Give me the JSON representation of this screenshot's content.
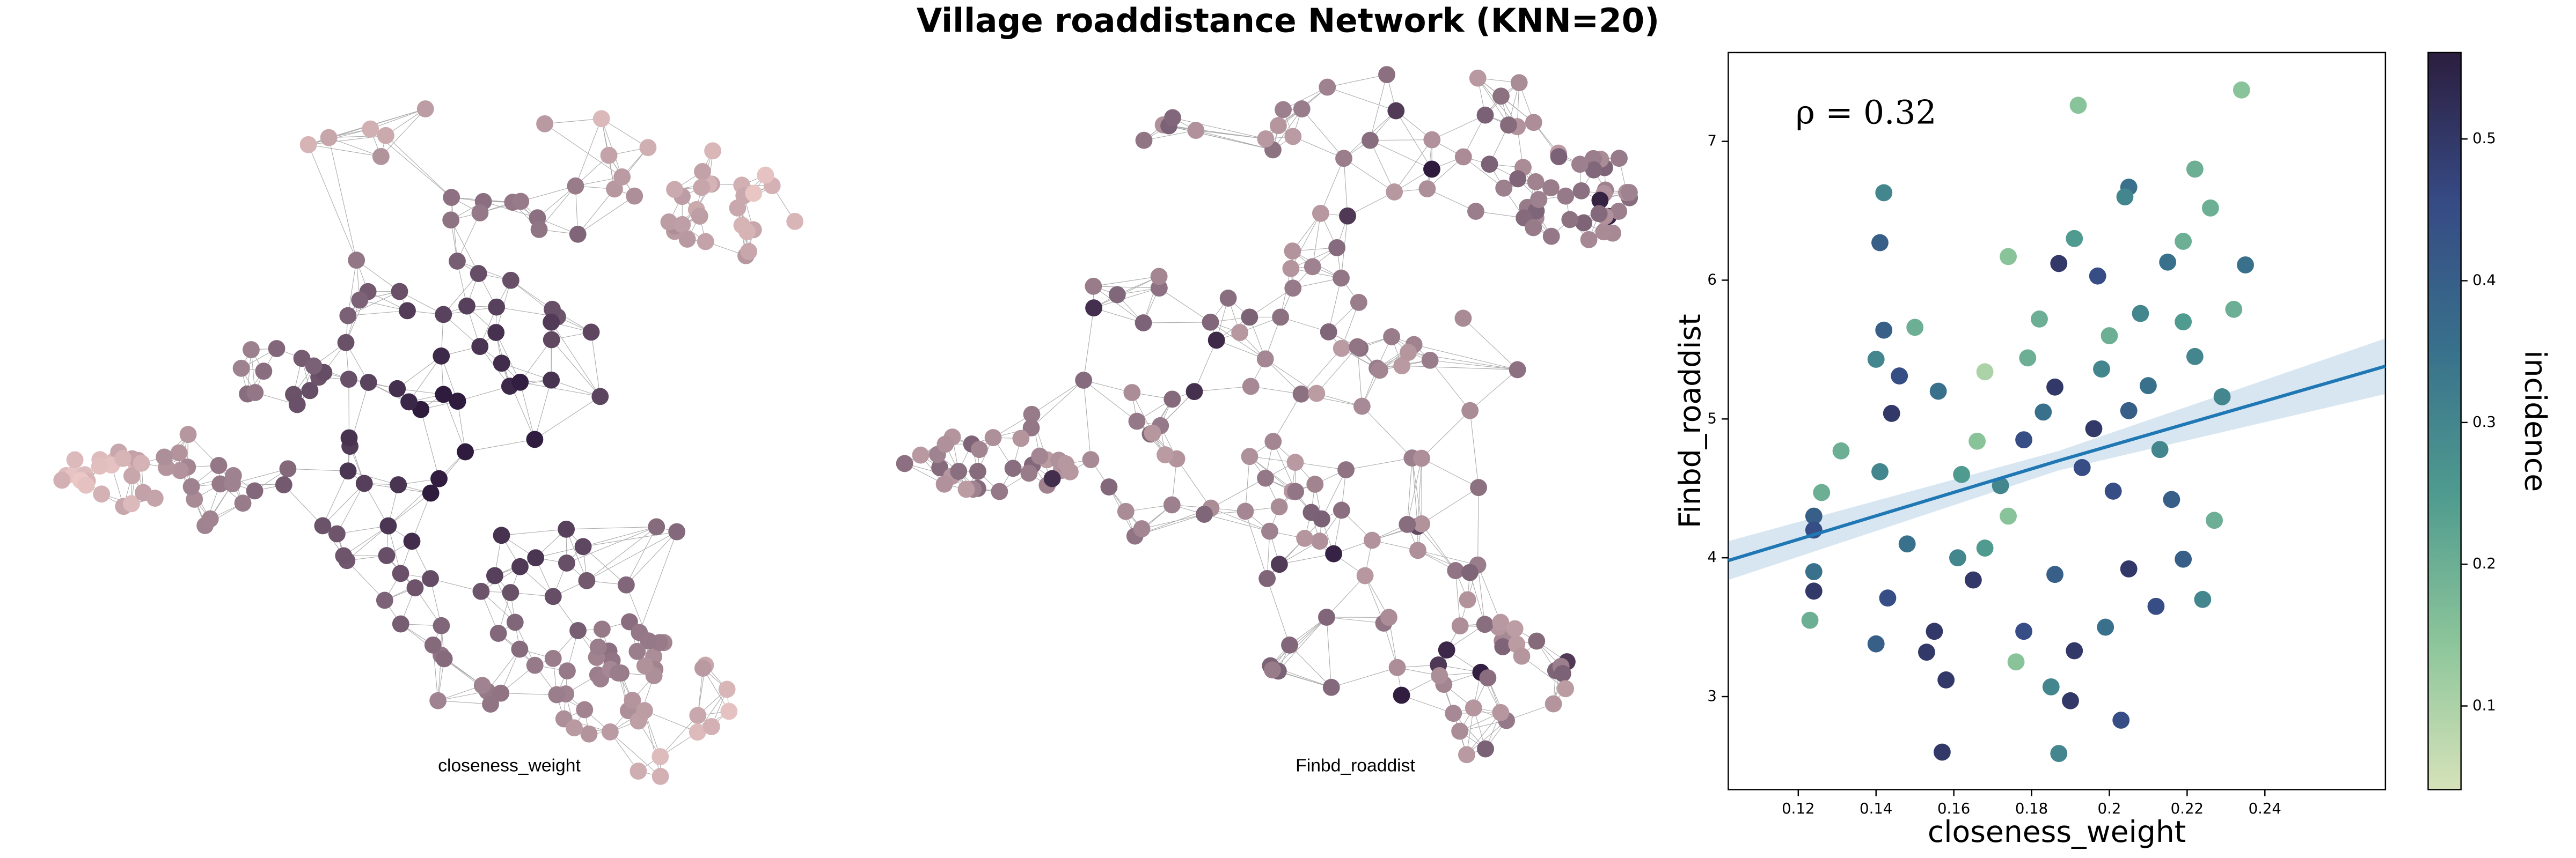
{
  "title": "Village roaddistance Network (KNN=20)",
  "chart_data": [
    {
      "type": "network",
      "caption": "closeness_weight",
      "shading": "center-dark"
    },
    {
      "type": "network",
      "caption": "Finbd_roaddist",
      "shading": "mostly-light"
    },
    {
      "type": "scatter",
      "annotation": "ρ = 0.32",
      "x_label": "closeness_weight",
      "y_label": "Finbd_roaddist",
      "colorbar_label": "incidence",
      "xlim": [
        0.102,
        0.271
      ],
      "ylim": [
        2.33,
        7.64
      ],
      "clim": [
        0.041,
        0.561
      ],
      "xticks": [
        0.12,
        0.14,
        0.16,
        0.18,
        0.2,
        0.22,
        0.24
      ],
      "yticks": [
        3,
        4,
        5,
        6,
        7
      ],
      "cticks": [
        0.1,
        0.2,
        0.3,
        0.4,
        0.5
      ],
      "colormap": [
        "#d6e2b9",
        "#8cc59a",
        "#4f9b8f",
        "#38708c",
        "#364a84",
        "#2c1e3f"
      ],
      "fit": {
        "color": "#1f77b4",
        "x": [
          0.102,
          0.187,
          0.271
        ],
        "y": [
          3.98,
          4.7,
          5.38
        ],
        "lower": [
          3.84,
          4.63,
          5.18
        ],
        "upper": [
          4.12,
          4.77,
          5.58
        ]
      },
      "points": {
        "x": [
          0.234,
          0.192,
          0.222,
          0.142,
          0.205,
          0.204,
          0.226,
          0.191,
          0.141,
          0.174,
          0.235,
          0.187,
          0.219,
          0.126,
          0.124,
          0.124,
          0.124,
          0.123,
          0.124,
          0.131,
          0.142,
          0.14,
          0.146,
          0.15,
          0.156,
          0.144,
          0.141,
          0.148,
          0.143,
          0.14,
          0.155,
          0.153,
          0.158,
          0.157,
          0.176,
          0.187,
          0.185,
          0.19,
          0.203,
          0.178,
          0.191,
          0.168,
          0.172,
          0.178,
          0.183,
          0.179,
          0.186,
          0.193,
          0.196,
          0.198,
          0.201,
          0.205,
          0.21,
          0.213,
          0.216,
          0.219,
          0.222,
          0.227,
          0.224,
          0.219,
          0.212,
          0.205,
          0.199,
          0.186,
          0.174,
          0.166,
          0.162,
          0.208,
          0.229,
          0.197,
          0.215,
          0.2,
          0.232,
          0.182,
          0.168,
          0.161,
          0.165
        ],
        "y": [
          7.37,
          7.26,
          6.8,
          6.63,
          6.67,
          6.6,
          6.52,
          6.3,
          6.27,
          6.17,
          6.11,
          6.12,
          6.28,
          4.47,
          4.3,
          4.2,
          3.9,
          3.55,
          3.76,
          4.77,
          5.64,
          5.43,
          5.31,
          5.66,
          5.2,
          5.04,
          4.62,
          4.1,
          3.71,
          3.38,
          3.47,
          3.32,
          3.12,
          2.6,
          3.25,
          2.59,
          3.07,
          2.97,
          2.83,
          3.47,
          3.33,
          4.07,
          4.52,
          4.85,
          5.05,
          5.44,
          5.23,
          4.65,
          4.93,
          5.36,
          4.48,
          5.06,
          5.24,
          4.78,
          4.42,
          5.7,
          5.45,
          4.27,
          3.7,
          3.99,
          3.65,
          3.92,
          3.5,
          3.88,
          4.3,
          4.84,
          4.6,
          5.76,
          5.16,
          6.03,
          6.13,
          5.6,
          5.79,
          5.72,
          5.34,
          4.0,
          3.84
        ],
        "color_values": [
          0.15,
          0.15,
          0.2,
          0.3,
          0.35,
          0.3,
          0.2,
          0.25,
          0.4,
          0.15,
          0.35,
          0.5,
          0.2,
          0.2,
          0.4,
          0.45,
          0.35,
          0.2,
          0.5,
          0.2,
          0.4,
          0.3,
          0.45,
          0.2,
          0.35,
          0.5,
          0.3,
          0.35,
          0.45,
          0.4,
          0.5,
          0.5,
          0.5,
          0.5,
          0.15,
          0.3,
          0.3,
          0.5,
          0.45,
          0.45,
          0.5,
          0.25,
          0.3,
          0.45,
          0.35,
          0.2,
          0.5,
          0.45,
          0.5,
          0.3,
          0.45,
          0.4,
          0.35,
          0.3,
          0.4,
          0.25,
          0.3,
          0.2,
          0.3,
          0.4,
          0.45,
          0.5,
          0.35,
          0.4,
          0.15,
          0.15,
          0.25,
          0.3,
          0.3,
          0.45,
          0.35,
          0.2,
          0.2,
          0.2,
          0.1,
          0.3,
          0.5
        ]
      }
    }
  ]
}
